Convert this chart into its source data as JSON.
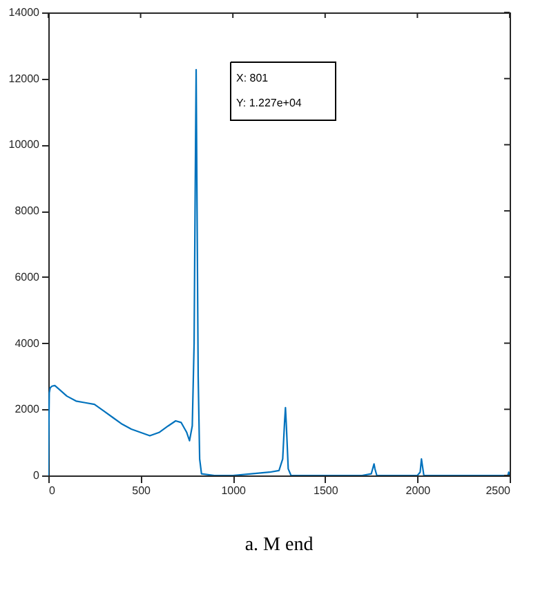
{
  "chart_data": {
    "type": "line",
    "title": "a. M end",
    "x": [
      0,
      5,
      10,
      20,
      35,
      60,
      100,
      150,
      200,
      250,
      300,
      350,
      400,
      450,
      500,
      550,
      600,
      650,
      690,
      720,
      750,
      765,
      780,
      790,
      795,
      801,
      806,
      812,
      820,
      830,
      900,
      1000,
      1100,
      1200,
      1250,
      1270,
      1280,
      1285,
      1290,
      1300,
      1315,
      1400,
      1500,
      1600,
      1700,
      1750,
      1760,
      1765,
      1770,
      1780,
      1900,
      2000,
      2015,
      2022,
      2027,
      2035,
      2050,
      2200,
      2400,
      2490,
      2495,
      2500
    ],
    "series": [
      {
        "color": "#0072bd",
        "values": [
          0,
          2500,
          2650,
          2700,
          2720,
          2600,
          2400,
          2250,
          2200,
          2150,
          1950,
          1750,
          1550,
          1400,
          1300,
          1200,
          1300,
          1500,
          1650,
          1600,
          1300,
          1050,
          1500,
          4000,
          8000,
          12270,
          8000,
          3000,
          500,
          50,
          0,
          0,
          50,
          100,
          150,
          500,
          1600,
          2050,
          1500,
          200,
          0,
          0,
          0,
          0,
          0,
          50,
          250,
          350,
          200,
          0,
          0,
          0,
          100,
          500,
          300,
          0,
          0,
          0,
          0,
          0,
          100,
          0
        ]
      }
    ],
    "xlim": [
      0,
      2500
    ],
    "ylim": [
      0,
      14000
    ],
    "xticks": [
      0,
      500,
      1000,
      1500,
      2000,
      2500
    ],
    "yticks": [
      0,
      2000,
      4000,
      6000,
      8000,
      10000,
      12000,
      14000
    ],
    "grid": false,
    "annotations": [
      "X: 801",
      "Y: 1.227e+04"
    ]
  }
}
